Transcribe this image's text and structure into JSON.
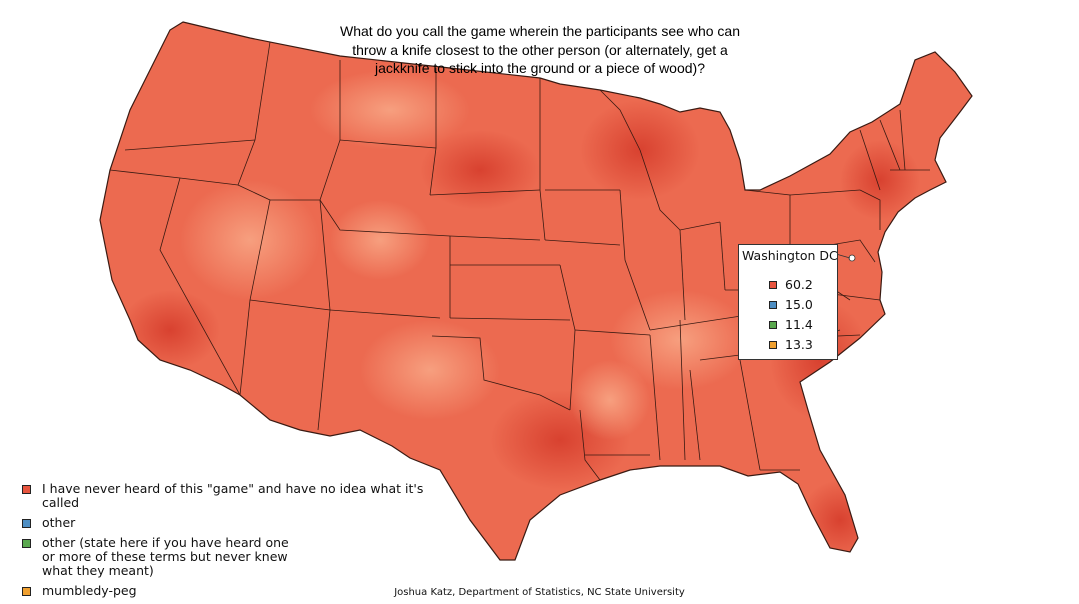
{
  "title": "What do you call the game wherein the participants see who can throw a knife closest to the other person (or alternately, get a jackknife to stick into the ground or a piece of wood)?",
  "legend": [
    {
      "label": "I have never heard of this \"game\" and have no idea what it's called",
      "color": "#e8553f"
    },
    {
      "label": "other",
      "color": "#4e8fc4"
    },
    {
      "label": "other (state here if you have heard one or more of these terms but never knew what they meant)",
      "color": "#5aa84f"
    },
    {
      "label": "mumbledy-peg",
      "color": "#f0a030"
    }
  ],
  "inset": {
    "title": "Washington DC",
    "values": [
      "60.2",
      "15.0",
      "11.4",
      "13.3"
    ]
  },
  "credit": "Joshua Katz, Department of Statistics, NC State University",
  "colors": {
    "base_fill": "#ec6a50",
    "dark": "#dd4634",
    "light": "#f6977a",
    "border": "#3a1a12"
  }
}
